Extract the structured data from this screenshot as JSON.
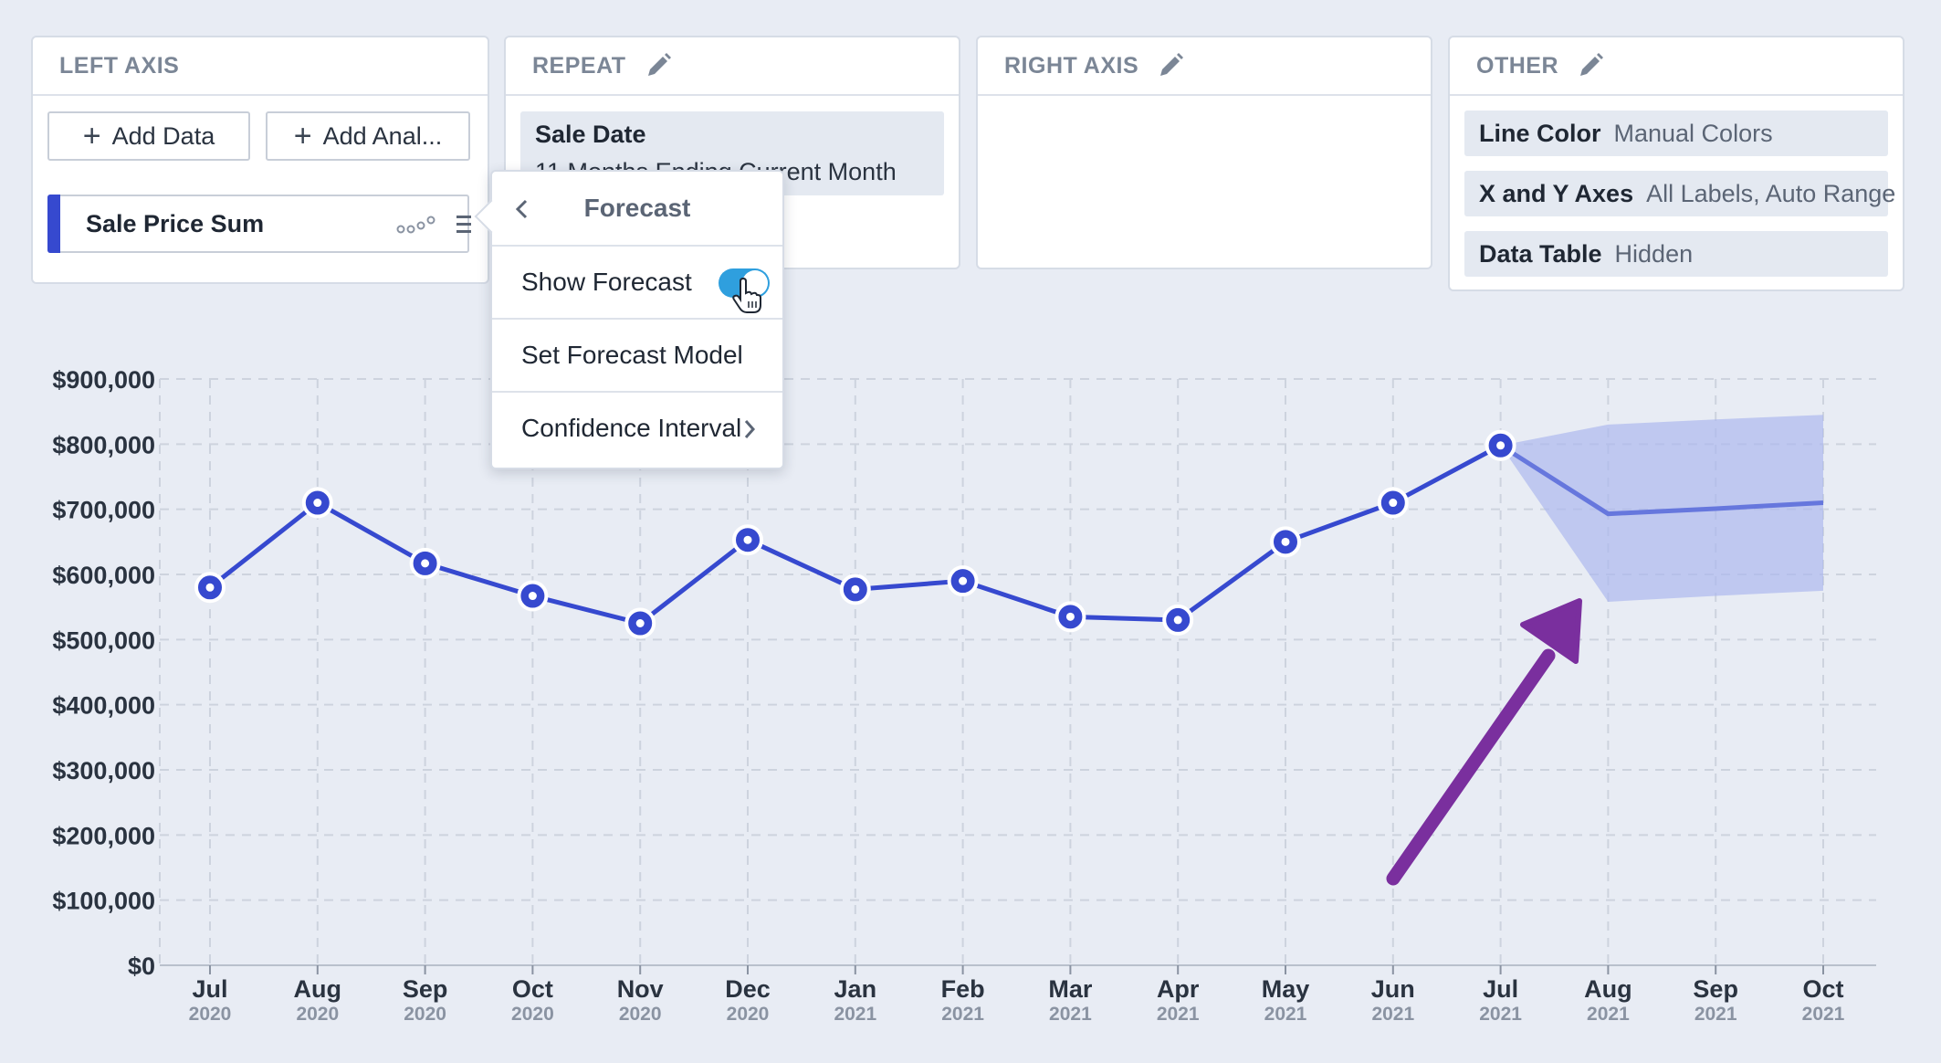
{
  "panels": {
    "left_axis": {
      "title": "LEFT AXIS",
      "add_data": "Add Data",
      "add_analysis": "Add Anal...",
      "series_label": "Sale Price Sum"
    },
    "repeat": {
      "title": "REPEAT",
      "chip_label": "Sale Date",
      "chip_value": "11 Months Ending Current Month"
    },
    "right_axis": {
      "title": "RIGHT AXIS"
    },
    "other": {
      "title": "OTHER",
      "items": [
        {
          "label": "Line Color",
          "value": "Manual Colors"
        },
        {
          "label": "X and Y Axes",
          "value": "All Labels, Auto Range"
        },
        {
          "label": "Data Table",
          "value": "Hidden"
        }
      ]
    }
  },
  "popup": {
    "title": "Forecast",
    "show_forecast": "Show Forecast",
    "show_forecast_on": true,
    "set_model": "Set Forecast Model",
    "confidence": "Confidence Interval"
  },
  "colors": {
    "series": "#3649cf",
    "band": "#a9b5ee",
    "arrow": "#7a2f9e",
    "accent_toggle": "#2f9fde"
  },
  "icons": [
    "plus-icon",
    "pencil-icon",
    "scatter-dots-icon",
    "drag-handle-icon",
    "chevron-left-icon",
    "chevron-right-icon",
    "hand-pointer-icon",
    "arrow-annotation"
  ],
  "chart_data": {
    "type": "line",
    "title": "",
    "xlabel": "",
    "ylabel": "",
    "ylim": [
      0,
      900000
    ],
    "yticks": [
      "$900,000",
      "$800,000",
      "$700,000",
      "$600,000",
      "$500,000",
      "$400,000",
      "$300,000",
      "$200,000",
      "$100,000",
      "$0"
    ],
    "ytick_values": [
      900000,
      800000,
      700000,
      600000,
      500000,
      400000,
      300000,
      200000,
      100000,
      0
    ],
    "categories": [
      {
        "month": "Jul",
        "year": "2020"
      },
      {
        "month": "Aug",
        "year": "2020"
      },
      {
        "month": "Sep",
        "year": "2020"
      },
      {
        "month": "Oct",
        "year": "2020"
      },
      {
        "month": "Nov",
        "year": "2020"
      },
      {
        "month": "Dec",
        "year": "2020"
      },
      {
        "month": "Jan",
        "year": "2021"
      },
      {
        "month": "Feb",
        "year": "2021"
      },
      {
        "month": "Mar",
        "year": "2021"
      },
      {
        "month": "Apr",
        "year": "2021"
      },
      {
        "month": "May",
        "year": "2021"
      },
      {
        "month": "Jun",
        "year": "2021"
      },
      {
        "month": "Jul",
        "year": "2021"
      },
      {
        "month": "Aug",
        "year": "2021"
      },
      {
        "month": "Sep",
        "year": "2021"
      },
      {
        "month": "Oct",
        "year": "2021"
      }
    ],
    "series": [
      {
        "name": "Sale Price Sum",
        "values": [
          580000,
          710000,
          617000,
          567000,
          525000,
          653000,
          577000,
          590000,
          535000,
          530000,
          650000,
          710000,
          798000,
          null,
          null,
          null
        ]
      }
    ],
    "forecast": {
      "start_index": 12,
      "values": [
        798000,
        693000,
        701000,
        710000
      ],
      "lower": [
        798000,
        558000,
        567000,
        575000
      ],
      "upper": [
        798000,
        830000,
        838000,
        845000
      ]
    },
    "grid": true,
    "legend": "none"
  }
}
